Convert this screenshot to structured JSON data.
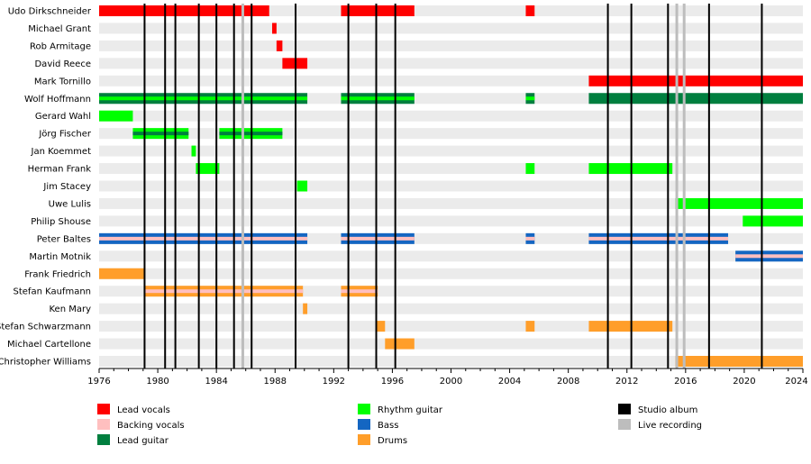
{
  "chart_data": {
    "type": "timeline",
    "x_range": [
      1976,
      2024
    ],
    "x_ticks": [
      "1976",
      "1980",
      "1984",
      "1988",
      "1992",
      "1996",
      "2000",
      "2004",
      "2008",
      "2012",
      "2016",
      "2020",
      "2024"
    ],
    "members": [
      "Udo Dirkschneider",
      "Michael Grant",
      "Rob Armitage",
      "David Reece",
      "Mark Tornillo",
      "Wolf Hoffmann",
      "Gerard Wahl",
      "Jörg Fischer",
      "Jan Koemmet",
      "Herman Frank",
      "Jim Stacey",
      "Uwe Lulis",
      "Philip Shouse",
      "Peter Baltes",
      "Martin Motnik",
      "Frank Friedrich",
      "Stefan Kaufmann",
      "Ken Mary",
      "Stefan Schwarzmann",
      "Michael Cartellone",
      "Christopher Williams"
    ],
    "roles": {
      "lead_vocals": {
        "label": "Lead vocals",
        "color": "#ff0000"
      },
      "backing_vocals": {
        "label": "Backing vocals",
        "color": "#ffbfbf"
      },
      "lead_guitar": {
        "label": "Lead guitar",
        "color": "#007f3f"
      },
      "rhythm_guitar": {
        "label": "Rhythm guitar",
        "color": "#00ff00"
      },
      "bass": {
        "label": "Bass",
        "color": "#1466c2"
      },
      "drums": {
        "label": "Drums",
        "color": "#ff9e2a"
      },
      "studio_album": {
        "label": "Studio album",
        "color": "#000000"
      },
      "live_recording": {
        "label": "Live recording",
        "color": "#bdbdbd"
      }
    },
    "bars": [
      {
        "member": 0,
        "start": 1976.0,
        "end": 1987.6,
        "role": "lead_vocals"
      },
      {
        "member": 0,
        "start": 1992.5,
        "end": 1997.5,
        "role": "lead_vocals"
      },
      {
        "member": 0,
        "start": 2005.1,
        "end": 2005.7,
        "role": "lead_vocals"
      },
      {
        "member": 1,
        "start": 1987.8,
        "end": 1988.1,
        "role": "lead_vocals"
      },
      {
        "member": 2,
        "start": 1988.1,
        "end": 1988.5,
        "role": "lead_vocals"
      },
      {
        "member": 3,
        "start": 1988.5,
        "end": 1990.2,
        "role": "lead_vocals"
      },
      {
        "member": 4,
        "start": 2009.4,
        "end": 2024.0,
        "role": "lead_vocals"
      },
      {
        "member": 5,
        "start": 1976.0,
        "end": 1990.2,
        "role": "lead_guitar",
        "second": "rhythm_guitar"
      },
      {
        "member": 5,
        "start": 1992.5,
        "end": 1997.5,
        "role": "lead_guitar",
        "second": "rhythm_guitar"
      },
      {
        "member": 5,
        "start": 2005.1,
        "end": 2005.7,
        "role": "lead_guitar",
        "second": "rhythm_guitar"
      },
      {
        "member": 5,
        "start": 2009.4,
        "end": 2024.0,
        "role": "lead_guitar"
      },
      {
        "member": 6,
        "start": 1976.0,
        "end": 1978.3,
        "role": "rhythm_guitar"
      },
      {
        "member": 7,
        "start": 1978.3,
        "end": 1982.1,
        "role": "rhythm_guitar",
        "second": "lead_guitar"
      },
      {
        "member": 7,
        "start": 1984.2,
        "end": 1988.5,
        "role": "rhythm_guitar",
        "second": "lead_guitar"
      },
      {
        "member": 8,
        "start": 1982.3,
        "end": 1982.6,
        "role": "rhythm_guitar"
      },
      {
        "member": 9,
        "start": 1982.6,
        "end": 1984.2,
        "role": "rhythm_guitar"
      },
      {
        "member": 9,
        "start": 2005.1,
        "end": 2005.7,
        "role": "rhythm_guitar"
      },
      {
        "member": 9,
        "start": 2009.4,
        "end": 2015.1,
        "role": "rhythm_guitar"
      },
      {
        "member": 10,
        "start": 1989.5,
        "end": 1990.2,
        "role": "rhythm_guitar"
      },
      {
        "member": 11,
        "start": 2015.3,
        "end": 2024.0,
        "role": "rhythm_guitar"
      },
      {
        "member": 12,
        "start": 2019.9,
        "end": 2024.0,
        "role": "rhythm_guitar"
      },
      {
        "member": 13,
        "start": 1976.0,
        "end": 1990.2,
        "role": "bass",
        "second": "backing_vocals"
      },
      {
        "member": 13,
        "start": 1992.5,
        "end": 1997.5,
        "role": "bass",
        "second": "backing_vocals"
      },
      {
        "member": 13,
        "start": 2005.1,
        "end": 2005.7,
        "role": "bass",
        "second": "backing_vocals"
      },
      {
        "member": 13,
        "start": 2009.4,
        "end": 2018.9,
        "role": "bass",
        "second": "backing_vocals"
      },
      {
        "member": 14,
        "start": 2019.4,
        "end": 2024.0,
        "role": "bass",
        "second": "backing_vocals"
      },
      {
        "member": 15,
        "start": 1976.0,
        "end": 1979.1,
        "role": "drums"
      },
      {
        "member": 16,
        "start": 1979.1,
        "end": 1989.9,
        "role": "drums",
        "second": "backing_vocals"
      },
      {
        "member": 16,
        "start": 1992.5,
        "end": 1995.0,
        "role": "drums",
        "second": "backing_vocals"
      },
      {
        "member": 17,
        "start": 1989.9,
        "end": 1990.2,
        "role": "drums"
      },
      {
        "member": 18,
        "start": 1994.9,
        "end": 1995.5,
        "role": "drums"
      },
      {
        "member": 18,
        "start": 2005.1,
        "end": 2005.7,
        "role": "drums"
      },
      {
        "member": 18,
        "start": 2009.4,
        "end": 2015.1,
        "role": "drums"
      },
      {
        "member": 19,
        "start": 1995.5,
        "end": 1997.5,
        "role": "drums"
      },
      {
        "member": 20,
        "start": 2015.3,
        "end": 2024.0,
        "role": "drums"
      }
    ],
    "studio_albums": [
      1979.1,
      1980.5,
      1981.2,
      1982.8,
      1984.0,
      1985.2,
      1986.4,
      1989.4,
      1993.0,
      1994.9,
      1996.2,
      2010.7,
      2012.3,
      2014.8,
      2017.6,
      2021.2
    ],
    "live_recordings": [
      1985.8,
      2015.4,
      2015.9
    ],
    "legend": [
      [
        "lead_vocals",
        "backing_vocals",
        "lead_guitar"
      ],
      [
        "rhythm_guitar",
        "bass",
        "drums"
      ],
      [
        "studio_album",
        "live_recording"
      ]
    ]
  }
}
